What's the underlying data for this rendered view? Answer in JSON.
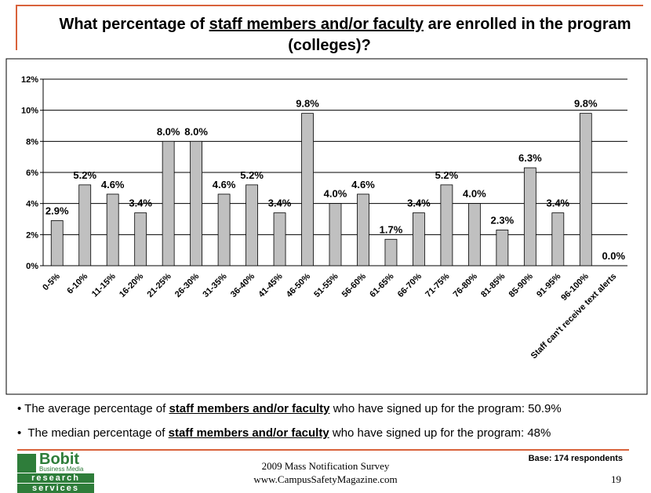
{
  "header": {
    "title_parts": [
      "What percentage of",
      "staff members and/or faculty",
      "are enrolled in the program",
      "(colleges)?"
    ]
  },
  "chart_data": {
    "type": "bar",
    "categories": [
      "0-5%",
      "6-10%",
      "11-15%",
      "16-20%",
      "21-25%",
      "26-30%",
      "31-35%",
      "36-40%",
      "41-45%",
      "46-50%",
      "51-55%",
      "56-60%",
      "61-65%",
      "66-70%",
      "71-75%",
      "76-80%",
      "81-85%",
      "85-90%",
      "91-95%",
      "96-100%",
      "Staff can't receive text alerts"
    ],
    "values": [
      2.9,
      5.2,
      4.6,
      3.4,
      8.0,
      8.0,
      4.6,
      5.2,
      3.4,
      9.8,
      4.0,
      4.6,
      1.7,
      3.4,
      5.2,
      4.0,
      2.3,
      6.3,
      3.4,
      9.8,
      0.0
    ],
    "value_labels": [
      "2.9%",
      "5.2%",
      "4.6%",
      "3.4%",
      "8.0%",
      "8.0%",
      "4.6%",
      "5.2%",
      "3.4%",
      "9.8%",
      "4.0%",
      "4.6%",
      "1.7%",
      "3.4%",
      "5.2%",
      "4.0%",
      "2.3%",
      "6.3%",
      "3.4%",
      "9.8%",
      "0.0%"
    ],
    "color": "#c0c0c0",
    "ylim": [
      0,
      12
    ],
    "yticks": [
      {
        "value": 0,
        "label": "0%"
      },
      {
        "value": 2,
        "label": "2%"
      },
      {
        "value": 4,
        "label": "4%"
      },
      {
        "value": 6,
        "label": "6%"
      },
      {
        "value": 8,
        "label": "8%"
      },
      {
        "value": 10,
        "label": "10%"
      },
      {
        "value": 12,
        "label": "12%"
      }
    ],
    "grid": true
  },
  "bullets": [
    [
      "The average percentage of",
      "staff members and/or faculty",
      "who have signed up for the program: 50.9%"
    ],
    [
      "The median percentage of",
      "staff members and/or faculty",
      "who have signed up for the program: 48%"
    ]
  ],
  "footer": {
    "survey": "2009 Mass Notification Survey",
    "website": "www.CampusSafetyMagazine.com",
    "base": "Base: 174 respondents",
    "page": "19",
    "logo": [
      "Bobit",
      "Business Media",
      "research",
      "services"
    ]
  }
}
